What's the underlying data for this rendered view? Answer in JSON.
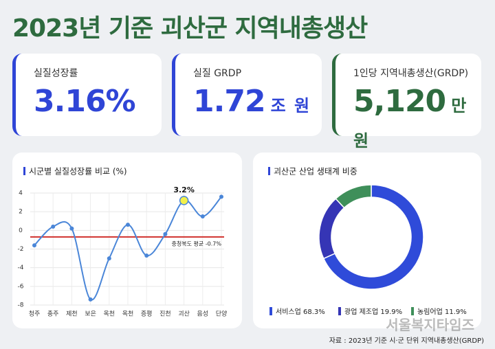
{
  "header": {
    "title": "2023년 기준 괴산군 지역내총생산"
  },
  "cards": [
    {
      "label": "실질성장률",
      "value": "3.16%",
      "color": "#2f45d6"
    },
    {
      "label": "실질 GRDP",
      "value": "1.72",
      "unit": "조 원",
      "color": "#2f45d6"
    },
    {
      "label": "1인당 지역내총생산(GRDP)",
      "value": "5,120",
      "unit": "만 원",
      "color": "#2e6b3f"
    }
  ],
  "chart_data": [
    {
      "type": "line",
      "title": "시군별 실질성장률 비교 (%)",
      "categories": [
        "청주",
        "충주",
        "제천",
        "보은",
        "옥천",
        "옥천",
        "증평",
        "진천",
        "괴산",
        "음성",
        "단양"
      ],
      "values": [
        -1.6,
        0.4,
        0.2,
        -7.4,
        -3.0,
        0.6,
        -2.7,
        -0.4,
        3.2,
        1.5,
        3.6
      ],
      "value_labels": [
        null,
        null,
        null,
        null,
        null,
        null,
        null,
        null,
        "3.2%",
        null,
        null
      ],
      "color": "#4a86d8",
      "ylim": [
        -8,
        4
      ],
      "yticks": [
        -8,
        -6,
        -4,
        -2,
        0,
        2,
        4
      ],
      "grid": true,
      "reference_line": {
        "value": -0.7,
        "label": "충청북도 평균 -0.7%",
        "color": "#d0312d"
      }
    },
    {
      "type": "pie",
      "title": "괴산군 산업 생태계 비중",
      "categories": [
        "서비스업",
        "광업 제조업",
        "농림어업"
      ],
      "values": [
        68.3,
        19.9,
        11.9
      ],
      "value_labels": [
        "68.3%",
        "19.9%",
        "11.9%"
      ],
      "colors": [
        "#2f4bd9",
        "#3535b5",
        "#3f8f5a"
      ]
    }
  ],
  "source": "자료 : 2023년 기준 시·군 단위 지역내총생산(GRDP)",
  "watermark": "서울복지타임즈"
}
